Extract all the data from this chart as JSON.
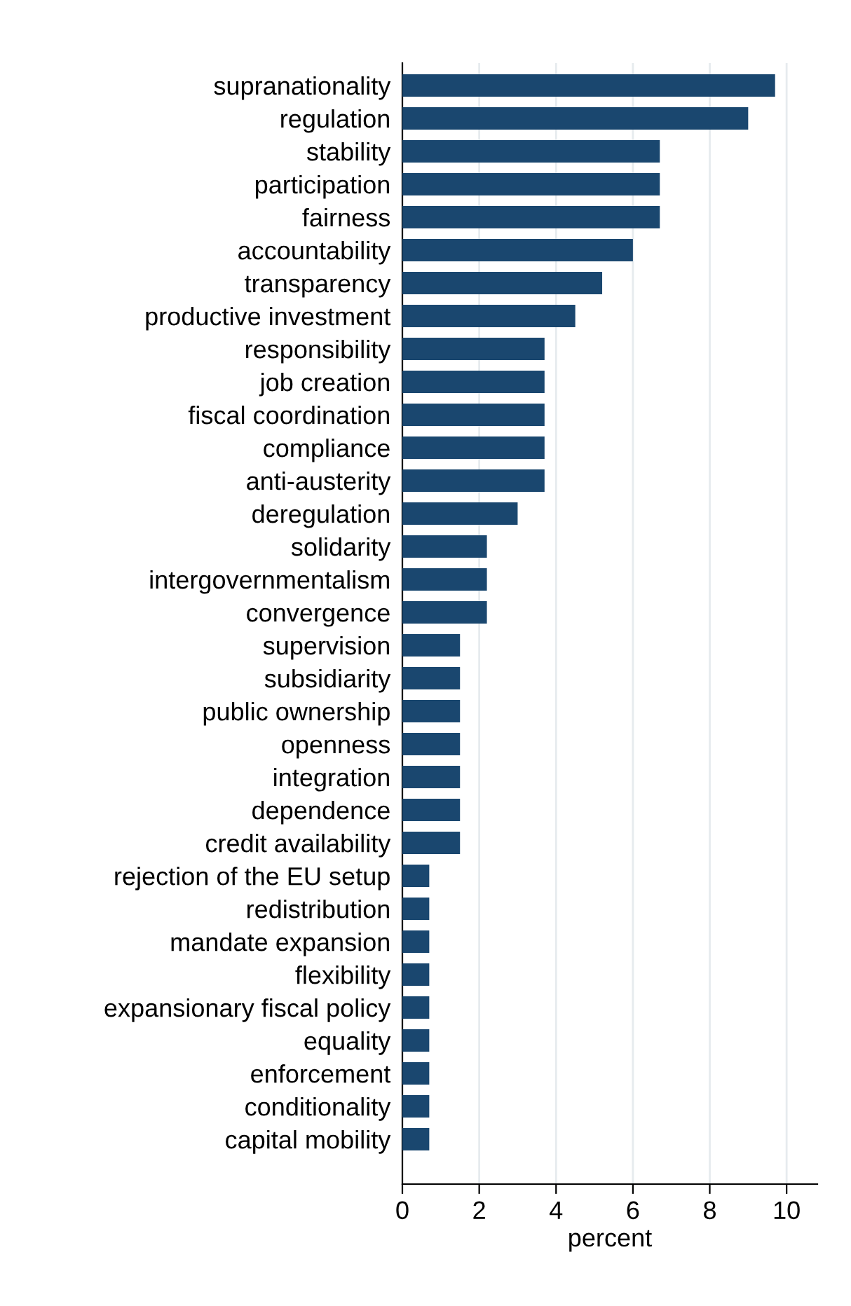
{
  "chart_data": {
    "type": "bar",
    "orientation": "horizontal",
    "xlabel": "percent",
    "categories": [
      "supranationality",
      "regulation",
      "stability",
      "participation",
      "fairness",
      "accountability",
      "transparency",
      "productive investment",
      "responsibility",
      "job creation",
      "fiscal coordination",
      "compliance",
      "anti-austerity",
      "deregulation",
      "solidarity",
      "intergovernmentalism",
      "convergence",
      "supervision",
      "subsidiarity",
      "public ownership",
      "openness",
      "integration",
      "dependence",
      "credit availability",
      "rejection of the EU setup",
      "redistribution",
      "mandate expansion",
      "flexibility",
      "expansionary fiscal policy",
      "equality",
      "enforcement",
      "conditionality",
      "capital mobility"
    ],
    "values": [
      9.7,
      9.0,
      6.7,
      6.7,
      6.7,
      6.0,
      5.2,
      4.5,
      3.7,
      3.7,
      3.7,
      3.7,
      3.7,
      3.0,
      2.2,
      2.2,
      2.2,
      1.5,
      1.5,
      1.5,
      1.5,
      1.5,
      1.5,
      1.5,
      0.7,
      0.7,
      0.7,
      0.7,
      0.7,
      0.7,
      0.7,
      0.7,
      0.7
    ],
    "color": "#1a476f",
    "xlim": [
      0,
      10.8
    ],
    "xticks": [
      0,
      2,
      4,
      6,
      8,
      10
    ],
    "grid": "x"
  }
}
